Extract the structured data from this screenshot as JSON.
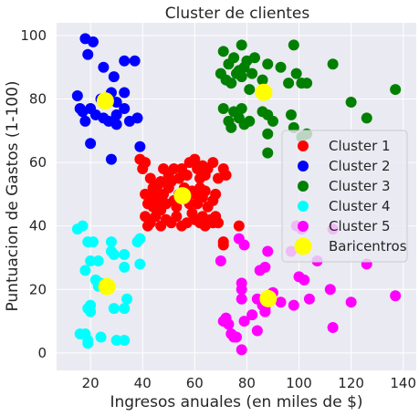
{
  "chart_data": {
    "type": "scatter",
    "title": "Cluster de clientes",
    "xlabel": "Ingresos anuales (en miles de $)",
    "ylabel": "Puntuacion de Gastos (1-100)",
    "xlim": [
      7,
      145
    ],
    "ylim": [
      -5.5,
      104
    ],
    "xticks": [
      20,
      40,
      60,
      80,
      100,
      120,
      140
    ],
    "yticks": [
      0,
      20,
      40,
      60,
      80,
      100
    ],
    "grid": true,
    "legend_position": "center-right",
    "background": "#eaeaf2",
    "series": [
      {
        "name": "Cluster 1",
        "color": "#ff0000",
        "points": [
          [
            39,
            61
          ],
          [
            40,
            58
          ],
          [
            41,
            60
          ],
          [
            43,
            55
          ],
          [
            44,
            52
          ],
          [
            46,
            53
          ],
          [
            47,
            54
          ],
          [
            48,
            58
          ],
          [
            50,
            56
          ],
          [
            51,
            54
          ],
          [
            52,
            58
          ],
          [
            54,
            55
          ],
          [
            55,
            58
          ],
          [
            57,
            56
          ],
          [
            58,
            60
          ],
          [
            60,
            61
          ],
          [
            61,
            58
          ],
          [
            62,
            55
          ],
          [
            63,
            59
          ],
          [
            64,
            56
          ],
          [
            65,
            58
          ],
          [
            67,
            60
          ],
          [
            69,
            55
          ],
          [
            71,
            58
          ],
          [
            72,
            56
          ],
          [
            41,
            50
          ],
          [
            42,
            47
          ],
          [
            43,
            49
          ],
          [
            44,
            46
          ],
          [
            45,
            51
          ],
          [
            46,
            48
          ],
          [
            47,
            45
          ],
          [
            48,
            50
          ],
          [
            49,
            47
          ],
          [
            50,
            52
          ],
          [
            52,
            48
          ],
          [
            53,
            46
          ],
          [
            54,
            50
          ],
          [
            56,
            52
          ],
          [
            57,
            49
          ],
          [
            58,
            47
          ],
          [
            59,
            51
          ],
          [
            60,
            50
          ],
          [
            61,
            47
          ],
          [
            62,
            52
          ],
          [
            63,
            49
          ],
          [
            64,
            51
          ],
          [
            65,
            46
          ],
          [
            67,
            48
          ],
          [
            68,
            50
          ],
          [
            41,
            43
          ],
          [
            42,
            40
          ],
          [
            43,
            41
          ],
          [
            45,
            43
          ],
          [
            47,
            40
          ],
          [
            49,
            42
          ],
          [
            51,
            41
          ],
          [
            53,
            43
          ],
          [
            55,
            40
          ],
          [
            57,
            41
          ],
          [
            59,
            44
          ],
          [
            60,
            42
          ],
          [
            62,
            41
          ],
          [
            63,
            43
          ],
          [
            64,
            40
          ],
          [
            66,
            42
          ],
          [
            67,
            41
          ],
          [
            68,
            43
          ],
          [
            69,
            41
          ],
          [
            71,
            35
          ],
          [
            71,
            34
          ],
          [
            77,
            40
          ]
        ]
      },
      {
        "name": "Cluster 2",
        "color": "#0000ff",
        "points": [
          [
            18,
            99
          ],
          [
            19,
            94
          ],
          [
            21,
            98
          ],
          [
            25,
            90
          ],
          [
            29,
            87
          ],
          [
            33,
            92
          ],
          [
            37,
            92
          ],
          [
            24,
            80
          ],
          [
            28,
            82
          ],
          [
            30,
            79
          ],
          [
            33,
            82
          ],
          [
            15,
            81
          ],
          [
            16,
            77
          ],
          [
            17,
            76
          ],
          [
            18,
            73
          ],
          [
            20,
            77
          ],
          [
            22,
            75
          ],
          [
            25,
            74
          ],
          [
            27,
            73
          ],
          [
            30,
            75
          ],
          [
            33,
            77
          ],
          [
            35,
            73
          ],
          [
            38,
            74
          ],
          [
            30,
            72
          ],
          [
            20,
            66
          ],
          [
            28,
            61
          ],
          [
            39,
            65
          ]
        ]
      },
      {
        "name": "Cluster 3",
        "color": "#008000",
        "points": [
          [
            71,
            95
          ],
          [
            73,
            91
          ],
          [
            75,
            93
          ],
          [
            77,
            89
          ],
          [
            78,
            97
          ],
          [
            80,
            92
          ],
          [
            83,
            93
          ],
          [
            88,
            91
          ],
          [
            93,
            90
          ],
          [
            98,
            97
          ],
          [
            103,
            85
          ],
          [
            113,
            91
          ],
          [
            137,
            83
          ],
          [
            70,
            88
          ],
          [
            72,
            86
          ],
          [
            74,
            85
          ],
          [
            76,
            88
          ],
          [
            78,
            87
          ],
          [
            79,
            90
          ],
          [
            82,
            88
          ],
          [
            86,
            86
          ],
          [
            96,
            85
          ],
          [
            99,
            88
          ],
          [
            101,
            85
          ],
          [
            120,
            79
          ],
          [
            126,
            74
          ],
          [
            71,
            77
          ],
          [
            73,
            73
          ],
          [
            74,
            71
          ],
          [
            75,
            76
          ],
          [
            77,
            74
          ],
          [
            78,
            77
          ],
          [
            79,
            72
          ],
          [
            81,
            73
          ],
          [
            86,
            76
          ],
          [
            88,
            75
          ],
          [
            90,
            73
          ],
          [
            97,
            75
          ],
          [
            98,
            71
          ],
          [
            88,
            69
          ],
          [
            101,
            68
          ],
          [
            103,
            69
          ],
          [
            88,
            63
          ],
          [
            81,
            83
          ]
        ]
      },
      {
        "name": "Cluster 4",
        "color": "#00ffff",
        "points": [
          [
            15,
            39
          ],
          [
            17,
            40
          ],
          [
            19,
            35
          ],
          [
            20,
            29
          ],
          [
            21,
            35
          ],
          [
            23,
            29
          ],
          [
            28,
            35
          ],
          [
            28,
            32
          ],
          [
            29,
            31
          ],
          [
            33,
            31
          ],
          [
            33,
            27
          ],
          [
            38,
            35
          ],
          [
            39,
            36
          ],
          [
            39,
            28
          ],
          [
            18,
            26
          ],
          [
            22,
            23
          ],
          [
            23,
            21
          ],
          [
            24,
            22
          ],
          [
            34,
            17
          ],
          [
            19,
            14
          ],
          [
            20,
            15
          ],
          [
            20,
            13
          ],
          [
            29,
            14
          ],
          [
            33,
            14
          ],
          [
            16,
            6
          ],
          [
            18,
            6
          ],
          [
            19,
            4
          ],
          [
            19,
            3
          ],
          [
            24,
            5
          ],
          [
            30,
            4
          ],
          [
            33,
            4
          ]
        ]
      },
      {
        "name": "Cluster 5",
        "color": "#ff00ff",
        "points": [
          [
            70,
            29
          ],
          [
            77,
            36
          ],
          [
            79,
            34
          ],
          [
            78,
            22
          ],
          [
            85,
            26
          ],
          [
            87,
            27
          ],
          [
            88,
            32
          ],
          [
            99,
            40
          ],
          [
            101,
            39
          ],
          [
            113,
            39
          ],
          [
            97,
            32
          ],
          [
            107,
            29
          ],
          [
            126,
            28
          ],
          [
            78,
            17
          ],
          [
            78,
            20
          ],
          [
            84,
            17
          ],
          [
            86,
            15
          ],
          [
            87,
            13
          ],
          [
            88,
            16
          ],
          [
            90,
            19
          ],
          [
            93,
            16
          ],
          [
            98,
            15
          ],
          [
            100,
            24
          ],
          [
            102,
            23
          ],
          [
            104,
            17
          ],
          [
            112,
            20
          ],
          [
            120,
            16
          ],
          [
            137,
            18
          ],
          [
            71,
            10
          ],
          [
            72,
            11
          ],
          [
            73,
            9
          ],
          [
            74,
            6
          ],
          [
            75,
            5
          ],
          [
            76,
            5
          ],
          [
            79,
            10
          ],
          [
            82,
            12
          ],
          [
            84,
            7
          ],
          [
            87,
            13
          ],
          [
            87,
            14
          ],
          [
            113,
            8
          ],
          [
            78,
            1
          ]
        ]
      },
      {
        "name": "Baricentros",
        "color": "#ffff00",
        "marker": "large",
        "points": [
          [
            55.3,
            49.5
          ],
          [
            25.7,
            79.4
          ],
          [
            86.5,
            82.1
          ],
          [
            26.3,
            20.9
          ],
          [
            88.2,
            17.1
          ]
        ]
      }
    ]
  }
}
